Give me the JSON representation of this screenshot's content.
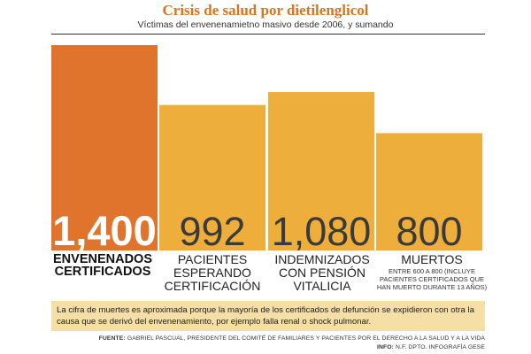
{
  "header": {
    "title": "Crisis de salud por dietilenglicol",
    "subtitle": "Víctimas del envenenamietno masivo desde 2006, y sumando"
  },
  "chart_data": {
    "type": "bar",
    "title": "Crisis de salud por dietilenglicol",
    "categories": [
      "ENVENENADOS CERTIFICADOS",
      "PACIENTES ESPERANDO CERTIFICACIÓN",
      "INDEMNIZADOS CON PENSIÓN VITALICIA",
      "MUERTOS"
    ],
    "values": [
      1400,
      992,
      1080,
      800
    ],
    "value_labels": [
      "1,400",
      "992",
      "1,080",
      "800"
    ],
    "category_notes": [
      "",
      "",
      "",
      "ENTRE 600 A 800 (INCLUYE PACIENTES CERTIFICADOS QUE HAN MUERTO DURANTE 13 AÑOS)"
    ],
    "colors": [
      "#e0742c",
      "#eeae3c",
      "#eeae3c",
      "#eeae3c"
    ],
    "ylim": [
      0,
      1400
    ],
    "xlabel": "",
    "ylabel": "",
    "grid": false
  },
  "labels": {
    "cat1_line1": "ENVENENADOS",
    "cat1_line2": "CERTIFICADOS",
    "cat2_line1": "PACIENTES",
    "cat2_line2": "ESPERANDO",
    "cat2_line3": "CERTIFICACIÓN",
    "cat3_line1": "INDEMNIZADOS",
    "cat3_line2": "CON PENSIÓN",
    "cat3_line3": "VITALICIA",
    "cat4_line1": "MUERTOS",
    "cat4_note": "ENTRE 600 A 800 (INCLUYE PACIENTES CERTIFICADOS QUE HAN MUERTO DURANTE 13 AÑOS)"
  },
  "note": "La cifra de muertes es aproximada porque la mayoría de los certificados de defunción se expidieron con otra la causa que se derivó del envenenamiento, por ejemplo falla renal o shock pulmonar.",
  "credits": {
    "source_label": "FUENTE:",
    "source_text": "GABRIEL PASCUAL, PRESIDENTE DEL COMITÉ DE FAMILIARES Y PACIENTES POR EL DERECHO A LA SALUD Y A LA VIDA",
    "info_label": "INFO:",
    "info_text": "N.F. DPTO. INFOGRAFÍA GESE"
  }
}
